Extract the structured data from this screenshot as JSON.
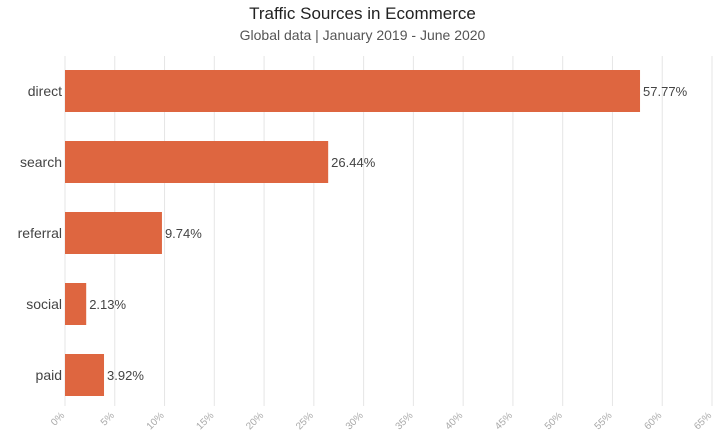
{
  "chart_data": {
    "type": "bar",
    "orientation": "horizontal",
    "title": "Traffic Sources in Ecommerce",
    "subtitle": "Global data | January 2019 - June 2020",
    "categories": [
      "direct",
      "search",
      "referral",
      "social",
      "paid"
    ],
    "values": [
      57.77,
      26.44,
      9.74,
      2.13,
      3.92
    ],
    "value_labels": [
      "57.77%",
      "26.44%",
      "9.74%",
      "2.13%",
      "3.92%"
    ],
    "xlim": [
      0,
      65
    ],
    "x_ticks": [
      0,
      5,
      10,
      15,
      20,
      25,
      30,
      35,
      40,
      45,
      50,
      55,
      60,
      65
    ],
    "x_tick_labels": [
      "0%",
      "5%",
      "10%",
      "15%",
      "20%",
      "25%",
      "30%",
      "35%",
      "40%",
      "45%",
      "50%",
      "55%",
      "60%",
      "65%"
    ],
    "grid": true,
    "bar_color": "#de6640"
  }
}
